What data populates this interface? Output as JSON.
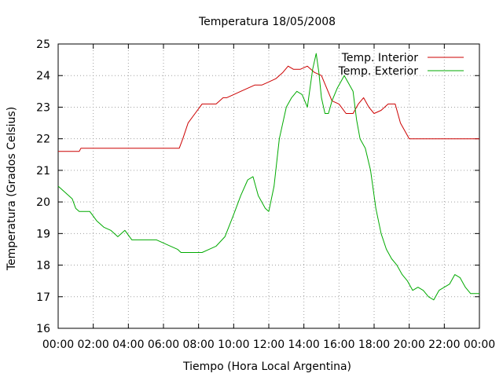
{
  "chart_data": {
    "type": "line",
    "title": "Temperatura 18/05/2008",
    "xlabel": "Tiempo (Hora Local Argentina)",
    "ylabel": "Temperatura (Grados Celsius)",
    "xlim": [
      0,
      24
    ],
    "ylim": [
      16,
      25
    ],
    "x_ticks": [
      0,
      2,
      4,
      6,
      8,
      10,
      12,
      14,
      16,
      18,
      20,
      22,
      24
    ],
    "x_tick_labels": [
      "00:00",
      "02:00",
      "04:00",
      "06:00",
      "08:00",
      "10:00",
      "12:00",
      "14:00",
      "16:00",
      "18:00",
      "20:00",
      "22:00",
      "00:00"
    ],
    "y_ticks": [
      16,
      17,
      18,
      19,
      20,
      21,
      22,
      23,
      24,
      25
    ],
    "y_tick_labels": [
      "16",
      "17",
      "18",
      "19",
      "20",
      "21",
      "22",
      "23",
      "24",
      "25"
    ],
    "grid": true,
    "legend_position": "top-right",
    "series": [
      {
        "name": "Temp. Interior",
        "color": "#cc0000",
        "x": [
          0,
          1.2,
          1.3,
          6.9,
          7.1,
          7.4,
          7.8,
          8.2,
          9.0,
          9.4,
          9.6,
          10.0,
          10.4,
          10.8,
          11.2,
          11.6,
          12.0,
          12.4,
          12.8,
          13.1,
          13.4,
          13.8,
          14.2,
          14.6,
          15.0,
          15.3,
          15.6,
          16.0,
          16.4,
          16.8,
          17.1,
          17.4,
          17.7,
          18.0,
          18.4,
          18.8,
          19.2,
          19.5,
          19.8,
          20.0,
          22.0,
          24.0
        ],
        "y": [
          21.6,
          21.6,
          21.7,
          21.7,
          22.0,
          22.5,
          22.8,
          23.1,
          23.1,
          23.3,
          23.3,
          23.4,
          23.5,
          23.6,
          23.7,
          23.7,
          23.8,
          23.9,
          24.1,
          24.3,
          24.2,
          24.2,
          24.3,
          24.1,
          24.0,
          23.6,
          23.2,
          23.1,
          22.8,
          22.8,
          23.1,
          23.3,
          23.0,
          22.8,
          22.9,
          23.1,
          23.1,
          22.5,
          22.2,
          22.0,
          22.0,
          22.0
        ]
      },
      {
        "name": "Temp. Exterior",
        "color": "#00aa00",
        "x": [
          0,
          0.4,
          0.8,
          1.0,
          1.2,
          1.8,
          2.2,
          2.6,
          3.0,
          3.4,
          3.8,
          4.2,
          4.6,
          5.0,
          5.6,
          6.0,
          6.4,
          6.8,
          7.0,
          7.6,
          8.2,
          8.6,
          9.0,
          9.5,
          10.0,
          10.4,
          10.8,
          11.1,
          11.4,
          11.8,
          12.0,
          12.3,
          12.6,
          13.0,
          13.3,
          13.6,
          13.9,
          14.2,
          14.5,
          14.7,
          14.85,
          15.0,
          15.2,
          15.4,
          15.6,
          15.9,
          16.1,
          16.3,
          16.5,
          16.8,
          17.0,
          17.2,
          17.5,
          17.8,
          18.1,
          18.4,
          18.7,
          19.0,
          19.3,
          19.6,
          19.9,
          20.2,
          20.5,
          20.8,
          21.1,
          21.4,
          21.7,
          22.0,
          22.3,
          22.6,
          22.9,
          23.2,
          23.5,
          23.8,
          24.0
        ],
        "y": [
          20.5,
          20.3,
          20.1,
          19.8,
          19.7,
          19.7,
          19.4,
          19.2,
          19.1,
          18.9,
          19.1,
          18.8,
          18.8,
          18.8,
          18.8,
          18.7,
          18.6,
          18.5,
          18.4,
          18.4,
          18.4,
          18.5,
          18.6,
          18.9,
          19.6,
          20.2,
          20.7,
          20.8,
          20.2,
          19.8,
          19.7,
          20.5,
          22.0,
          23.0,
          23.3,
          23.5,
          23.4,
          23.0,
          24.2,
          24.7,
          24.1,
          23.3,
          22.8,
          22.8,
          23.2,
          23.6,
          23.8,
          24.0,
          23.8,
          23.5,
          22.6,
          22.0,
          21.7,
          21.0,
          19.8,
          19.0,
          18.5,
          18.2,
          18.0,
          17.7,
          17.5,
          17.2,
          17.3,
          17.2,
          17.0,
          16.9,
          17.2,
          17.3,
          17.4,
          17.7,
          17.6,
          17.3,
          17.1,
          17.1,
          17.1
        ]
      }
    ]
  }
}
